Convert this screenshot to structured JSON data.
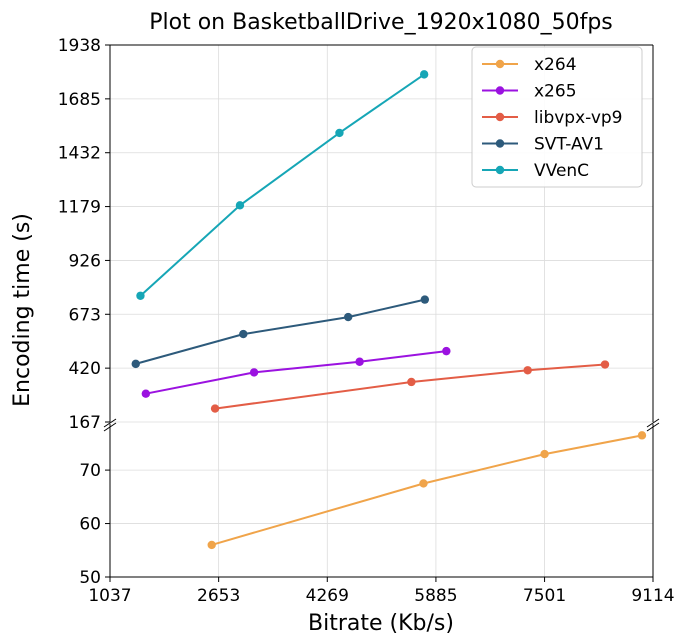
{
  "chart_data": {
    "type": "line",
    "title": "Plot on BasketballDrive_1920x1080_50fps",
    "xlabel": "Bitrate (Kb/s)",
    "ylabel": "Encoding time (s)",
    "xlim": [
      1037,
      9114
    ],
    "x_ticks": [
      "1037",
      "2653",
      "4269",
      "5885",
      "7501",
      "9114"
    ],
    "broken_y_axis": true,
    "y_upper_lim": [
      167,
      1938
    ],
    "y_upper_ticks": [
      "1938",
      "1685",
      "1432",
      "1179",
      "926",
      "673",
      "420",
      "167"
    ],
    "y_lower_lim": [
      50,
      79
    ],
    "y_lower_ticks": [
      "70",
      "60",
      "50"
    ],
    "grid": true,
    "legend_position": "top-right",
    "series": [
      {
        "name": "x264",
        "color": "#f0a44a",
        "panel": "lower",
        "x": [
          2550,
          5700,
          7501,
          8950
        ],
        "y": [
          56,
          67.5,
          73,
          76.5
        ]
      },
      {
        "name": "x265",
        "color": "#9b12e0",
        "panel": "upper",
        "x": [
          1570,
          3180,
          4750,
          6040
        ],
        "y": [
          300,
          400,
          450,
          500
        ]
      },
      {
        "name": "libvpx-vp9",
        "color": "#e35d46",
        "panel": "upper",
        "x": [
          2600,
          5520,
          7250,
          8400
        ],
        "y": [
          230,
          355,
          410,
          437
        ]
      },
      {
        "name": "SVT-AV1",
        "color": "#2d5a7b",
        "panel": "upper",
        "x": [
          1420,
          3020,
          4580,
          5720
        ],
        "y": [
          440,
          580,
          660,
          742
        ]
      },
      {
        "name": "VVenC",
        "color": "#16a6b6",
        "panel": "upper",
        "x": [
          1490,
          2970,
          4450,
          5710
        ],
        "y": [
          760,
          1185,
          1525,
          1800
        ]
      }
    ]
  }
}
